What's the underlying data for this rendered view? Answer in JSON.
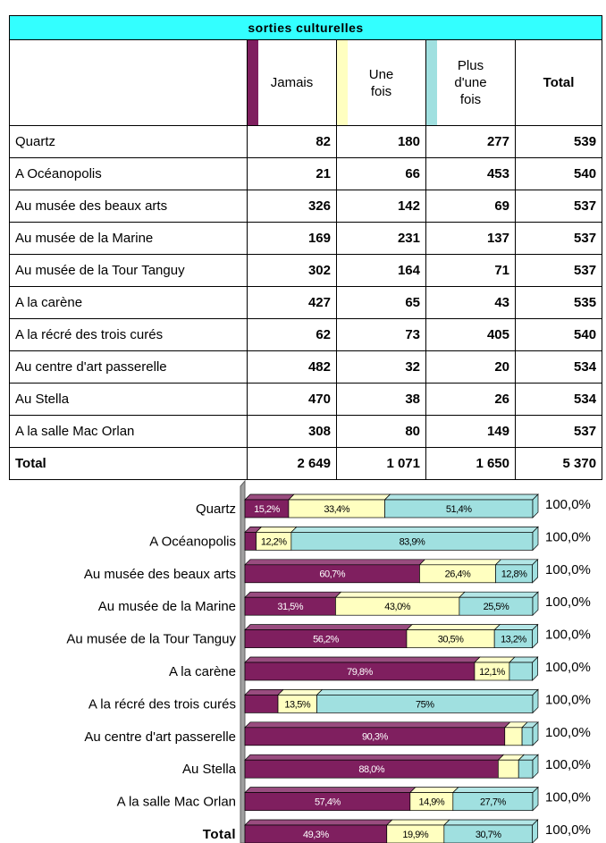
{
  "table": {
    "title": "sorties culturelles",
    "header": [
      "Jamais",
      "Une fois",
      "Plus d'une fois",
      "Total"
    ],
    "header_colors": [
      "#7f1f5f",
      "#ffffc0",
      "#a0e0e0",
      null
    ],
    "rows": [
      [
        "Quartz",
        "82",
        "180",
        "277",
        "539"
      ],
      [
        "A Océanopolis",
        "21",
        "66",
        "453",
        "540"
      ],
      [
        "Au musée des beaux arts",
        "326",
        "142",
        "69",
        "537"
      ],
      [
        "Au musée de la Marine",
        "169",
        "231",
        "137",
        "537"
      ],
      [
        "Au musée de la Tour Tanguy",
        "302",
        "164",
        "71",
        "537"
      ],
      [
        "A la carène",
        "427",
        "65",
        "43",
        "535"
      ],
      [
        "A la récré des trois curés",
        "62",
        "73",
        "405",
        "540"
      ],
      [
        "Au centre d'art passerelle",
        "482",
        "32",
        "20",
        "534"
      ],
      [
        "Au Stella",
        "470",
        "38",
        "26",
        "534"
      ],
      [
        "A la salle Mac Orlan",
        "308",
        "80",
        "149",
        "537"
      ],
      [
        "Total",
        "2 649",
        "1 071",
        "1 650",
        "5 370"
      ]
    ]
  },
  "chart_data": {
    "type": "bar",
    "orientation": "horizontal",
    "stacked": true,
    "categories": [
      "Quartz",
      "A Océanopolis",
      "Au musée des beaux arts",
      "Au musée de la Marine",
      "Au musée de la Tour Tanguy",
      "A la carène",
      "A la récré des trois curés",
      "Au centre d'art passerelle",
      "Au Stella",
      "A la salle Mac Orlan",
      "Total"
    ],
    "xlim": [
      0,
      100
    ],
    "series": [
      {
        "color": "#7f1f5f",
        "label_color": "#ffffff",
        "values": [
          15.2,
          3.9,
          60.7,
          31.5,
          56.2,
          79.8,
          11.5,
          90.3,
          88.0,
          57.4,
          49.3
        ],
        "value_labels": [
          "15,2%",
          null,
          "60,7%",
          "31,5%",
          "56,2%",
          "79,8%",
          null,
          "90,3%",
          "88,0%",
          "57,4%",
          "49,3%"
        ]
      },
      {
        "color": "#ffffc0",
        "label_color": "#000000",
        "values": [
          33.4,
          12.2,
          26.4,
          43.0,
          30.5,
          12.1,
          13.5,
          6.0,
          7.1,
          14.9,
          19.9
        ],
        "value_labels": [
          "33,4%",
          "12,2%",
          "26,4%",
          "43,0%",
          "30,5%",
          "12,1%",
          "13,5%",
          null,
          null,
          "14,9%",
          "19,9%"
        ]
      },
      {
        "color": "#a0e0e0",
        "label_color": "#000000",
        "values": [
          51.4,
          83.9,
          12.8,
          25.5,
          13.2,
          8.0,
          75,
          3.7,
          4.9,
          27.7,
          30.7
        ],
        "value_labels": [
          "51,4%",
          "83,9%",
          "12,8%",
          "25,5%",
          "13,2%",
          null,
          "75%",
          null,
          null,
          "27,7%",
          "30,7%"
        ]
      }
    ],
    "totals": [
      100,
      100,
      100,
      100,
      100,
      100,
      100,
      100,
      100,
      100,
      100
    ],
    "total_labels": [
      "100,0%",
      "100,0%",
      "100,0%",
      "100,0%",
      "100,0%",
      "100,0%",
      "100,0%",
      "100,0%",
      "100,0%",
      "100,0%",
      "100,0%"
    ]
  }
}
